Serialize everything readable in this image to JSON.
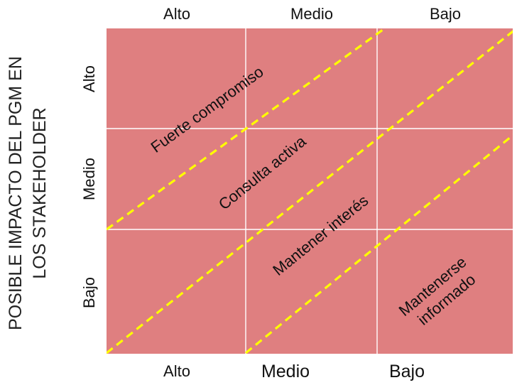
{
  "columns": {
    "top": [
      "Alto",
      "Medio",
      "Bajo"
    ],
    "bottom": [
      "Alto",
      "Medio",
      "Bajo"
    ]
  },
  "rows": [
    "Alto",
    "Medio",
    "Bajo"
  ],
  "y_title": {
    "line1": "POSIBLE IMPACTO DEL PGM EN",
    "line2": "LOS STAKEHOLDER"
  },
  "zones": {
    "strong": "Fuerte compromiso",
    "active": "Consulta activa",
    "interest": "Mantener interés",
    "informed_line1": "Mantenerse",
    "informed_line2": "informado"
  },
  "colors": {
    "matrix_fill": "#df7f80",
    "grid_line": "#ffffff",
    "dashed_line": "#ffff00",
    "text": "#111111"
  }
}
